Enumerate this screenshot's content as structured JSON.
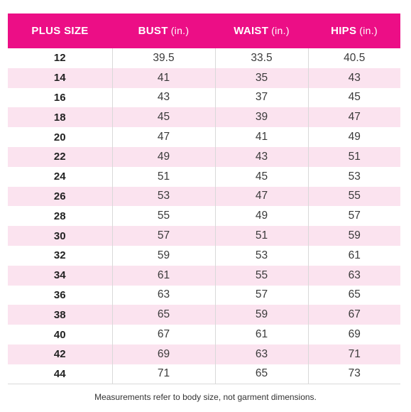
{
  "table": {
    "headers": [
      {
        "label": "PLUS SIZE",
        "unit": ""
      },
      {
        "label": "BUST",
        "unit": "(in.)"
      },
      {
        "label": "WAIST",
        "unit": "(in.)"
      },
      {
        "label": "HIPS",
        "unit": "(in.)"
      }
    ],
    "rows": [
      [
        "12",
        "39.5",
        "33.5",
        "40.5"
      ],
      [
        "14",
        "41",
        "35",
        "43"
      ],
      [
        "16",
        "43",
        "37",
        "45"
      ],
      [
        "18",
        "45",
        "39",
        "47"
      ],
      [
        "20",
        "47",
        "41",
        "49"
      ],
      [
        "22",
        "49",
        "43",
        "51"
      ],
      [
        "24",
        "51",
        "45",
        "53"
      ],
      [
        "26",
        "53",
        "47",
        "55"
      ],
      [
        "28",
        "55",
        "49",
        "57"
      ],
      [
        "30",
        "57",
        "51",
        "59"
      ],
      [
        "32",
        "59",
        "53",
        "61"
      ],
      [
        "34",
        "61",
        "55",
        "63"
      ],
      [
        "36",
        "63",
        "57",
        "65"
      ],
      [
        "38",
        "65",
        "59",
        "67"
      ],
      [
        "40",
        "67",
        "61",
        "69"
      ],
      [
        "42",
        "69",
        "63",
        "71"
      ],
      [
        "44",
        "71",
        "65",
        "73"
      ]
    ]
  },
  "footnote": "Measurements refer to body size, not garment dimensions.",
  "colors": {
    "header_background": "#ec0e86",
    "stripe": "#fbe3ef",
    "header_text": "#ffffff"
  }
}
